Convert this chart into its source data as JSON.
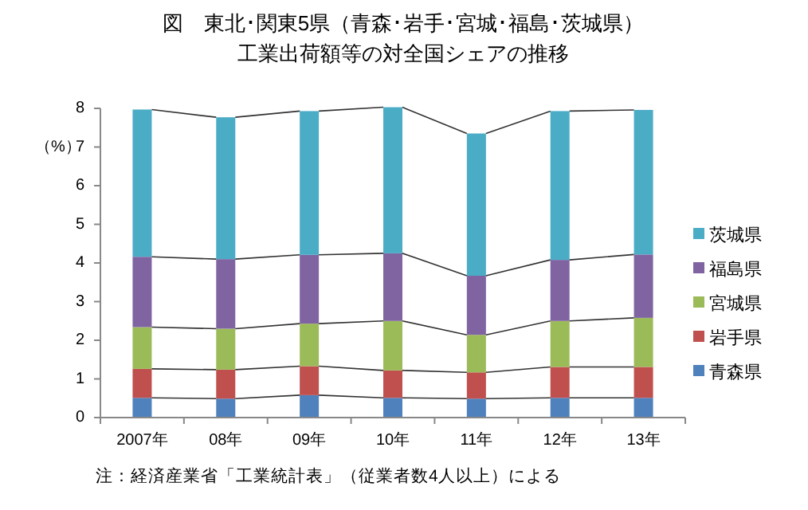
{
  "chart_data": {
    "type": "bar",
    "stacked": true,
    "title": "図　東北･関東5県（青森･岩手･宮城･福島･茨城県）",
    "subtitle": "工業出荷額等の対全国シェアの推移",
    "ylabel": "（%）",
    "categories": [
      "2007年",
      "08年",
      "09年",
      "10年",
      "11年",
      "12年",
      "13年"
    ],
    "series": [
      {
        "name": "青森県",
        "color": "#4f81bd",
        "values": [
          0.51,
          0.49,
          0.58,
          0.51,
          0.49,
          0.51,
          0.51
        ]
      },
      {
        "name": "岩手県",
        "color": "#c0504d",
        "values": [
          0.75,
          0.75,
          0.75,
          0.71,
          0.68,
          0.8,
          0.8
        ]
      },
      {
        "name": "宮城県",
        "color": "#9bbb59",
        "values": [
          1.08,
          1.06,
          1.1,
          1.28,
          0.97,
          1.19,
          1.27
        ]
      },
      {
        "name": "福島県",
        "color": "#8064a2",
        "values": [
          1.82,
          1.8,
          1.78,
          1.75,
          1.53,
          1.58,
          1.64
        ]
      },
      {
        "name": "茨城県",
        "color": "#4bacc6",
        "values": [
          3.81,
          3.67,
          3.72,
          3.78,
          3.68,
          3.85,
          3.74
        ]
      }
    ],
    "ylim": [
      0,
      8
    ],
    "yticks": [
      0,
      1,
      2,
      3,
      4,
      5,
      6,
      7,
      8
    ],
    "grid": false,
    "legend": "right",
    "annotations": [
      "注：経済産業省「工業統計表」（従業者数4人以上）による"
    ]
  }
}
